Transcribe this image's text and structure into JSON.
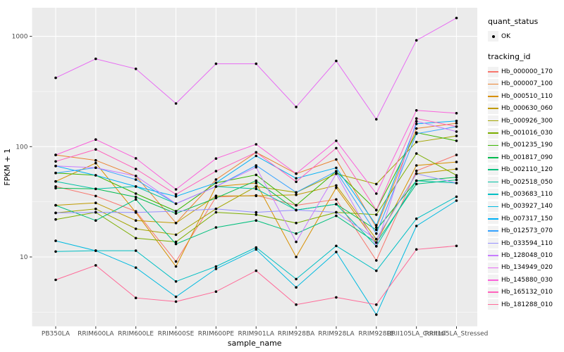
{
  "chart_data": {
    "type": "line",
    "title": "",
    "xlabel": "sample_name",
    "ylabel": "FPKM + 1",
    "y_scale": "log10",
    "y_ticks": [
      10,
      100,
      1000
    ],
    "ylim": [
      2.4,
      1800
    ],
    "grid": true,
    "legend_position": "right",
    "point_marker": "black dot on every value",
    "x_categories": [
      "PB350LA",
      "RRIM600LA",
      "RRIM600LE",
      "RRIM600SE",
      "RRIM600PE",
      "RRIM901LA",
      "RRIM928BA",
      "RRIM928LA",
      "RRIM928LE",
      "RRII105LA_Control",
      "RRII105LA_Stressed"
    ],
    "series": [
      {
        "name": "Hb_000000_170",
        "color": "#F8766D",
        "values": [
          43.5,
          35.7,
          25.9,
          9.1,
          34.9,
          36.2,
          29.4,
          33.2,
          9.3,
          60.3,
          84.1
        ]
      },
      {
        "name": "Hb_000007_100",
        "color": "#EA8331",
        "values": [
          84.1,
          75.2,
          54.2,
          20.3,
          50.3,
          88.8,
          56.9,
          76.5,
          18.5,
          146,
          163
        ]
      },
      {
        "name": "Hb_000510_110",
        "color": "#D89000",
        "values": [
          48.4,
          70.9,
          25.3,
          8.2,
          43.5,
          46.8,
          10.0,
          42.4,
          13.5,
          67.5,
          72.6
        ]
      },
      {
        "name": "Hb_000630_060",
        "color": "#C09B00",
        "values": [
          29.4,
          30.9,
          21.4,
          20.3,
          35.8,
          35.8,
          36.6,
          44.5,
          14.5,
          56.9,
          62.7
        ]
      },
      {
        "name": "Hb_000926_300",
        "color": "#A3A500",
        "values": [
          25.1,
          27.3,
          18.0,
          15.9,
          27.3,
          43.5,
          38.5,
          56.9,
          45.8,
          110,
          125
        ]
      },
      {
        "name": "Hb_001016_030",
        "color": "#7CAE00",
        "values": [
          21.9,
          25.4,
          14.8,
          13.7,
          25.4,
          24.2,
          20.3,
          25.4,
          24.2,
          86.6,
          55.0
        ]
      },
      {
        "name": "Hb_001235_190",
        "color": "#39B600",
        "values": [
          57.7,
          55.0,
          37.5,
          26.0,
          47.0,
          55.5,
          29.4,
          59.8,
          26.6,
          134,
          113
        ]
      },
      {
        "name": "Hb_001817_090",
        "color": "#00BB4E",
        "values": [
          42.0,
          41.4,
          34.9,
          24.8,
          34.2,
          49.1,
          26.6,
          30.1,
          17.6,
          49.1,
          52.8
        ]
      },
      {
        "name": "Hb_002110_120",
        "color": "#00BF7D",
        "values": [
          29.4,
          21.4,
          33.2,
          13.1,
          18.5,
          21.4,
          16.3,
          23.6,
          13.5,
          45.8,
          50.0
        ]
      },
      {
        "name": "Hb_002518_050",
        "color": "#00C1A3",
        "values": [
          48.4,
          41.4,
          43.5,
          30.4,
          43.5,
          41.4,
          26.6,
          30.1,
          12.5,
          49.1,
          46.8
        ]
      },
      {
        "name": "Hb_003683_110",
        "color": "#00BFC4",
        "values": [
          11.2,
          11.4,
          11.4,
          6.0,
          8.2,
          12.2,
          6.3,
          12.6,
          7.5,
          22.2,
          35.2
        ]
      },
      {
        "name": "Hb_003927_140",
        "color": "#00BAE0",
        "values": [
          14.0,
          11.4,
          8.0,
          4.35,
          7.8,
          11.7,
          5.3,
          11.1,
          3.0,
          19.1,
          32.4
        ]
      },
      {
        "name": "Hb_007317_150",
        "color": "#00B0F6",
        "values": [
          66.8,
          55.0,
          43.5,
          35.4,
          47.0,
          82.4,
          51.6,
          64.3,
          19.4,
          161,
          171
        ]
      },
      {
        "name": "Hb_012573_070",
        "color": "#35A2FF",
        "values": [
          57.7,
          64.4,
          50.3,
          30.4,
          43.5,
          67.5,
          38.5,
          59.8,
          16.3,
          131,
          152
        ]
      },
      {
        "name": "Hb_033594_110",
        "color": "#9590FF",
        "values": [
          25.1,
          25.4,
          25.3,
          26.0,
          27.3,
          25.4,
          26.6,
          25.4,
          14.5,
          56.9,
          46.8
        ]
      },
      {
        "name": "Hb_128048_010",
        "color": "#C77CFF",
        "values": [
          66.8,
          64.4,
          54.2,
          30.4,
          43.5,
          65.0,
          13.7,
          56.9,
          12.5,
          170,
          137
        ]
      },
      {
        "name": "Hb_134949_020",
        "color": "#E76BF3",
        "values": [
          420,
          625,
          507,
          246,
          564,
          564,
          229,
          598,
          177,
          920,
          1465
        ]
      },
      {
        "name": "Hb_145880_030",
        "color": "#FA62DB",
        "values": [
          84.1,
          116,
          78.3,
          41.0,
          78.0,
          105,
          57.0,
          113,
          37.5,
          213,
          201
        ]
      },
      {
        "name": "Hb_165132_010",
        "color": "#FF62BC",
        "values": [
          73.5,
          94.4,
          62.8,
          37.0,
          60.0,
          88.8,
          48.0,
          97.0,
          26.6,
          180,
          152
        ]
      },
      {
        "name": "Hb_181288_010",
        "color": "#FF6A98",
        "values": [
          6.2,
          8.4,
          4.25,
          3.94,
          4.85,
          7.5,
          3.7,
          4.3,
          3.7,
          11.7,
          12.6
        ]
      }
    ]
  },
  "legend": {
    "quant_status_title": "quant_status",
    "quant_status_items": [
      {
        "label": "OK",
        "marker": "point"
      }
    ],
    "tracking_title": "tracking_id"
  },
  "style_colors": {
    "panel_background": "#EBEBEB",
    "gridline": "#FFFFFF",
    "tick_label": "#4D4D4D",
    "axis_title": "#000000",
    "point": "#000000",
    "legend_key_background": "#F2F2F2"
  }
}
